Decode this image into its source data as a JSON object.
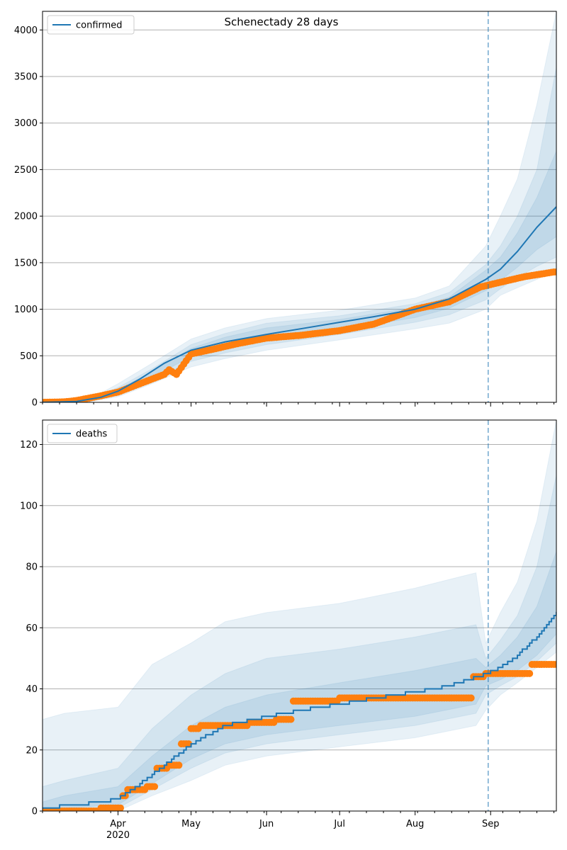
{
  "title": "Schenectady 28 days",
  "colors": {
    "model": "#1f77b4",
    "observed": "#ff7f0e",
    "band": "#1f77b4",
    "grid": "#b0b0b0",
    "vline": "#1f77b4"
  },
  "x_axis": {
    "month_ticks": [
      "Apr",
      "May",
      "Jun",
      "Jul",
      "Aug",
      "Sep"
    ],
    "year_label": "2020",
    "start": "2020-03-01",
    "end": "2020-09-28",
    "forecast_start": "2020-08-31"
  },
  "chart_data": [
    {
      "type": "line",
      "panel": "top",
      "legend": "confirmed",
      "legend_position": "upper-left",
      "title": "Schenectady 28 days",
      "grid": "y",
      "ylim": [
        0,
        4200
      ],
      "yticks": [
        0,
        500,
        1000,
        1500,
        2000,
        2500,
        3000,
        3500,
        4000
      ],
      "model_x": [
        "2020-03-01",
        "2020-03-15",
        "2020-03-25",
        "2020-04-01",
        "2020-04-10",
        "2020-04-20",
        "2020-05-01",
        "2020-05-15",
        "2020-06-01",
        "2020-06-15",
        "2020-07-01",
        "2020-07-15",
        "2020-08-01",
        "2020-08-15",
        "2020-08-30",
        "2020-09-05",
        "2020-09-12",
        "2020-09-20",
        "2020-09-28"
      ],
      "model_y": [
        0,
        10,
        55,
        120,
        250,
        420,
        560,
        650,
        730,
        790,
        860,
        920,
        1000,
        1110,
        1320,
        1430,
        1620,
        1880,
        2100
      ],
      "bands": [
        {
          "x": [
            "2020-03-01",
            "2020-03-20",
            "2020-04-01",
            "2020-04-15",
            "2020-05-01",
            "2020-05-15",
            "2020-06-01",
            "2020-07-01",
            "2020-08-01",
            "2020-08-15",
            "2020-08-30",
            "2020-09-05",
            "2020-09-12",
            "2020-09-20",
            "2020-09-28"
          ],
          "low": [
            0,
            5,
            60,
            200,
            380,
            470,
            560,
            670,
            790,
            850,
            1000,
            1150,
            1230,
            1320,
            1420
          ],
          "high": [
            0,
            30,
            200,
            420,
            680,
            800,
            900,
            990,
            1120,
            1250,
            1680,
            2000,
            2400,
            3200,
            4200
          ]
        },
        {
          "x": [
            "2020-03-01",
            "2020-03-20",
            "2020-04-01",
            "2020-04-15",
            "2020-05-01",
            "2020-05-15",
            "2020-06-01",
            "2020-07-01",
            "2020-08-01",
            "2020-08-15",
            "2020-08-30",
            "2020-09-05",
            "2020-09-12",
            "2020-09-20",
            "2020-09-28"
          ],
          "low": [
            0,
            8,
            80,
            240,
            440,
            530,
            620,
            730,
            860,
            940,
            1100,
            1220,
            1340,
            1460,
            1560
          ],
          "high": [
            0,
            22,
            160,
            360,
            620,
            740,
            850,
            930,
            1060,
            1180,
            1480,
            1680,
            2000,
            2500,
            3600
          ]
        },
        {
          "x": [
            "2020-03-01",
            "2020-03-20",
            "2020-04-01",
            "2020-04-15",
            "2020-05-01",
            "2020-05-15",
            "2020-06-01",
            "2020-07-01",
            "2020-08-01",
            "2020-08-15",
            "2020-08-30",
            "2020-09-05",
            "2020-09-12",
            "2020-09-20",
            "2020-09-28"
          ],
          "low": [
            0,
            10,
            95,
            270,
            490,
            580,
            670,
            780,
            910,
            1010,
            1200,
            1310,
            1450,
            1640,
            1780
          ],
          "high": [
            0,
            16,
            140,
            330,
            580,
            700,
            800,
            890,
            1020,
            1130,
            1420,
            1560,
            1820,
            2200,
            2700
          ]
        }
      ],
      "observed_x": [
        "2020-03-01",
        "2020-03-10",
        "2020-03-15",
        "2020-03-20",
        "2020-03-25",
        "2020-04-01",
        "2020-04-05",
        "2020-04-10",
        "2020-04-15",
        "2020-04-20",
        "2020-04-22",
        "2020-04-25",
        "2020-05-01",
        "2020-05-10",
        "2020-05-20",
        "2020-06-01",
        "2020-06-15",
        "2020-07-01",
        "2020-07-15",
        "2020-08-01",
        "2020-08-15",
        "2020-08-28",
        "2020-09-05",
        "2020-09-15",
        "2020-09-27"
      ],
      "observed_y": [
        0,
        5,
        20,
        45,
        70,
        110,
        150,
        200,
        250,
        300,
        350,
        300,
        520,
        570,
        630,
        690,
        720,
        770,
        840,
        1000,
        1080,
        1240,
        1290,
        1350,
        1400
      ]
    },
    {
      "type": "line",
      "panel": "bottom",
      "legend": "deaths",
      "legend_position": "upper-left",
      "grid": "y",
      "ylim": [
        0,
        128
      ],
      "yticks": [
        0,
        20,
        40,
        60,
        80,
        100,
        120
      ],
      "model_x": [
        "2020-03-01",
        "2020-03-15",
        "2020-03-25",
        "2020-04-01",
        "2020-04-10",
        "2020-04-20",
        "2020-05-01",
        "2020-05-15",
        "2020-06-01",
        "2020-06-15",
        "2020-07-01",
        "2020-07-15",
        "2020-08-01",
        "2020-08-15",
        "2020-08-30",
        "2020-09-05",
        "2020-09-12",
        "2020-09-20",
        "2020-09-28"
      ],
      "model_y": [
        1,
        2,
        3,
        4,
        9,
        15,
        22,
        28,
        31,
        33,
        35,
        37,
        39,
        41,
        45,
        47,
        51,
        57,
        65
      ],
      "bands": [
        {
          "x": [
            "2020-03-01",
            "2020-03-10",
            "2020-04-01",
            "2020-04-15",
            "2020-05-01",
            "2020-05-15",
            "2020-06-01",
            "2020-07-01",
            "2020-08-01",
            "2020-08-26",
            "2020-08-30",
            "2020-09-05",
            "2020-09-12",
            "2020-09-20",
            "2020-09-28"
          ],
          "low": [
            0,
            0,
            0,
            5,
            10,
            15,
            18,
            21,
            24,
            28,
            33,
            38,
            42,
            47,
            52
          ],
          "high": [
            30,
            32,
            34,
            48,
            55,
            62,
            65,
            68,
            73,
            78,
            55,
            65,
            75,
            95,
            128
          ]
        },
        {
          "x": [
            "2020-03-01",
            "2020-03-10",
            "2020-04-01",
            "2020-04-15",
            "2020-05-01",
            "2020-05-15",
            "2020-06-01",
            "2020-07-01",
            "2020-08-01",
            "2020-08-26",
            "2020-08-30",
            "2020-09-05",
            "2020-09-12",
            "2020-09-20",
            "2020-09-28"
          ],
          "low": [
            0,
            0,
            1,
            7,
            14,
            19,
            22,
            25,
            28,
            32,
            38,
            41,
            44,
            49,
            55
          ],
          "high": [
            8,
            10,
            14,
            27,
            38,
            45,
            50,
            53,
            57,
            61,
            50,
            56,
            64,
            80,
            110
          ]
        },
        {
          "x": [
            "2020-03-01",
            "2020-03-10",
            "2020-04-01",
            "2020-04-15",
            "2020-05-01",
            "2020-05-15",
            "2020-06-01",
            "2020-07-01",
            "2020-08-01",
            "2020-08-26",
            "2020-08-30",
            "2020-09-05",
            "2020-09-12",
            "2020-09-20",
            "2020-09-28"
          ],
          "low": [
            0,
            1,
            2,
            9,
            17,
            22,
            25,
            28,
            31,
            35,
            41,
            43,
            46,
            51,
            58
          ],
          "high": [
            3,
            5,
            8,
            18,
            28,
            34,
            38,
            42,
            46,
            50,
            47,
            51,
            57,
            67,
            85
          ]
        }
      ],
      "observed_x": [
        "2020-03-01",
        "2020-03-25",
        "2020-04-03",
        "2020-04-05",
        "2020-04-13",
        "2020-04-17",
        "2020-04-22",
        "2020-04-27",
        "2020-05-01",
        "2020-05-05",
        "2020-05-15",
        "2020-05-25",
        "2020-06-05",
        "2020-06-12",
        "2020-06-20",
        "2020-07-01",
        "2020-07-20",
        "2020-08-10",
        "2020-08-25",
        "2020-08-30",
        "2020-09-10",
        "2020-09-18",
        "2020-09-27"
      ],
      "observed_y": [
        0,
        1,
        5,
        7,
        8,
        14,
        15,
        22,
        27,
        28,
        28,
        29,
        30,
        36,
        36,
        37,
        37,
        37,
        44,
        45,
        45,
        48,
        48
      ]
    }
  ]
}
